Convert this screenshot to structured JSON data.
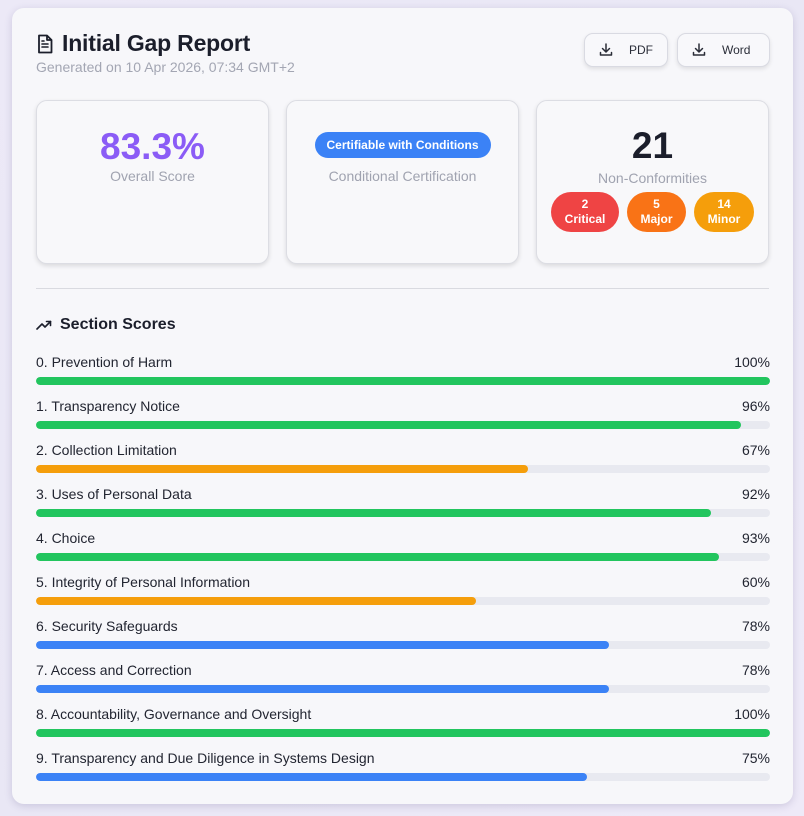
{
  "header": {
    "title": "Initial Gap Report",
    "subtitle": "Generated on 10 Apr 2026, 07:34 GMT+2",
    "pdf_label": "PDF",
    "word_label": "Word"
  },
  "stats": {
    "score_value": "83.3%",
    "score_label": "Overall Score",
    "cert_badge": "Certifiable with Conditions",
    "cert_label": "Conditional Certification",
    "nc_value": "21",
    "nc_label": "Non-Conformities",
    "critical_count": "2",
    "critical_label": "Critical",
    "major_count": "5",
    "major_label": "Major",
    "minor_count": "14",
    "minor_label": "Minor"
  },
  "section_scores": {
    "title": "Section Scores",
    "rows": [
      {
        "label": "0. Prevention of Harm",
        "pct": "100%",
        "value": 100,
        "color": "#22c55e"
      },
      {
        "label": "1. Transparency Notice",
        "pct": "96%",
        "value": 96,
        "color": "#22c55e"
      },
      {
        "label": "2. Collection Limitation",
        "pct": "67%",
        "value": 67,
        "color": "#f59e0b"
      },
      {
        "label": "3. Uses of Personal Data",
        "pct": "92%",
        "value": 92,
        "color": "#22c55e"
      },
      {
        "label": "4. Choice",
        "pct": "93%",
        "value": 93,
        "color": "#22c55e"
      },
      {
        "label": "5. Integrity of Personal Information",
        "pct": "60%",
        "value": 60,
        "color": "#f59e0b"
      },
      {
        "label": "6. Security Safeguards",
        "pct": "78%",
        "value": 78,
        "color": "#3b82f6"
      },
      {
        "label": "7. Access and Correction",
        "pct": "78%",
        "value": 78,
        "color": "#3b82f6"
      },
      {
        "label": "8. Accountability, Governance and Oversight",
        "pct": "100%",
        "value": 100,
        "color": "#22c55e"
      },
      {
        "label": "9. Transparency and Due Diligence in Systems Design",
        "pct": "75%",
        "value": 75,
        "color": "#3b82f6"
      }
    ]
  },
  "colors": {
    "accent_purple": "#8b5cf6",
    "blue": "#3b82f6",
    "green": "#22c55e",
    "amber": "#f59e0b",
    "red": "#ef4444",
    "orange": "#f97316"
  }
}
